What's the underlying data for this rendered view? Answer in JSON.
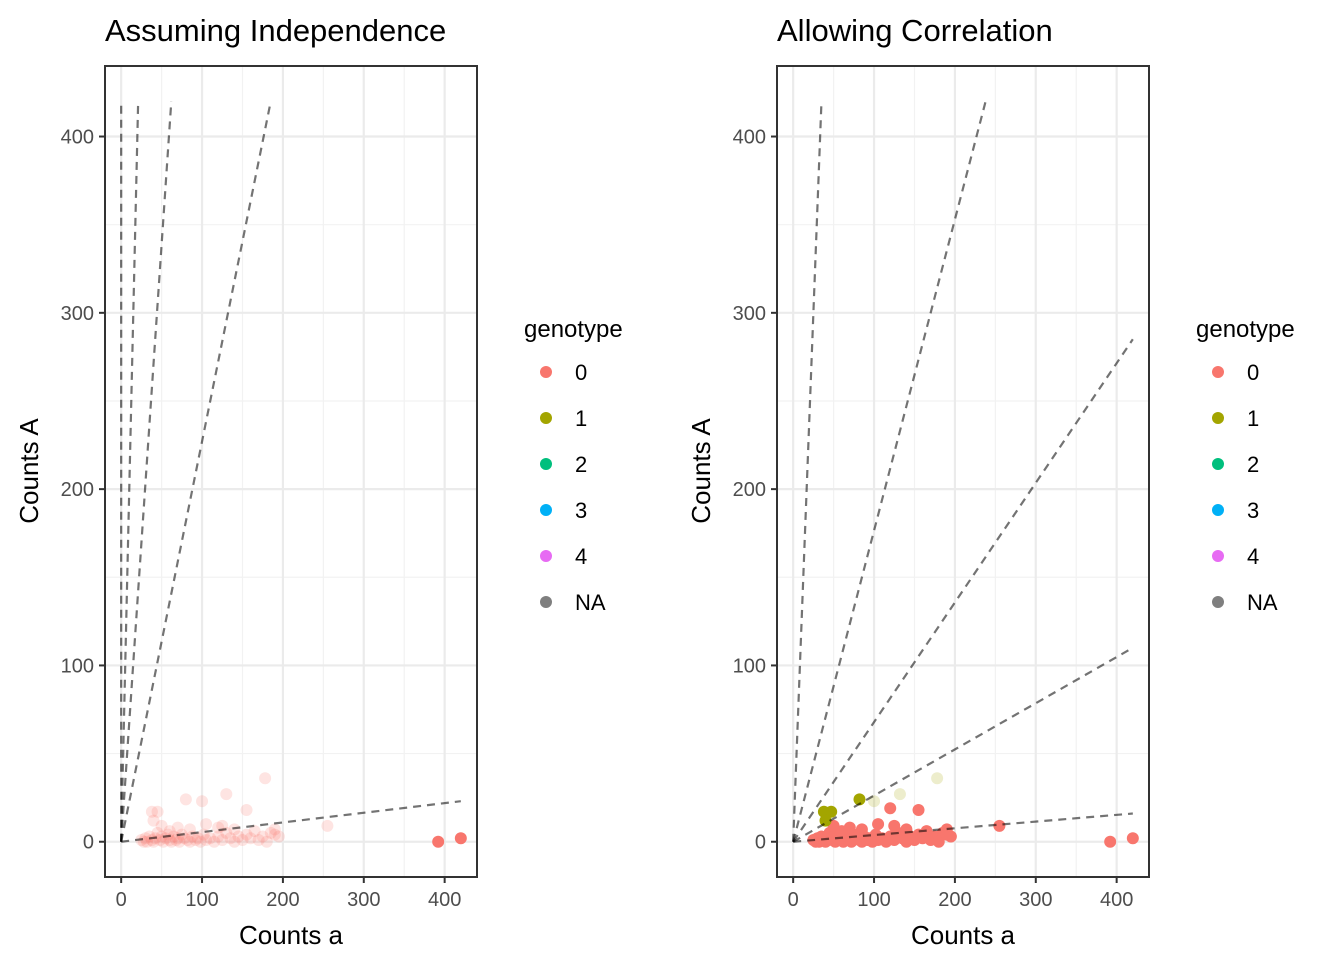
{
  "chart_data": [
    {
      "type": "scatter",
      "title": "Assuming Independence",
      "xlabel": "Counts a",
      "ylabel": "Counts A",
      "xlim": [
        -20,
        440
      ],
      "ylim": [
        -20,
        440
      ],
      "x_ticks": [
        0,
        100,
        200,
        300,
        400
      ],
      "y_ticks": [
        0,
        100,
        200,
        300,
        400
      ],
      "grid": true,
      "point_alpha": "faded",
      "legend": {
        "title": "genotype",
        "position": "right",
        "entries": [
          {
            "label": "0",
            "color": "#F8766D"
          },
          {
            "label": "1",
            "color": "#A3A500"
          },
          {
            "label": "2",
            "color": "#00BF7D"
          },
          {
            "label": "3",
            "color": "#00B0F6"
          },
          {
            "label": "4",
            "color": "#E76BF3"
          },
          {
            "label": "NA",
            "color": "#7F7F7F"
          }
        ]
      },
      "reference_lines": [
        {
          "x": [
            0,
            420
          ],
          "y": [
            0,
            23
          ]
        },
        {
          "x": [
            0,
            185
          ],
          "y": [
            0,
            420
          ]
        },
        {
          "x": [
            0,
            62
          ],
          "y": [
            0,
            420
          ]
        },
        {
          "x": [
            0,
            21
          ],
          "y": [
            0,
            420
          ]
        },
        {
          "x": [
            0,
            0
          ],
          "y": [
            0,
            420
          ]
        }
      ],
      "series": [
        {
          "genotype": "0",
          "points": [
            [
              25,
              1
            ],
            [
              28,
              0
            ],
            [
              30,
              2
            ],
            [
              32,
              0
            ],
            [
              35,
              3
            ],
            [
              38,
              1
            ],
            [
              40,
              0
            ],
            [
              42,
              2
            ],
            [
              45,
              5
            ],
            [
              48,
              1
            ],
            [
              50,
              3
            ],
            [
              52,
              0
            ],
            [
              55,
              2
            ],
            [
              58,
              4
            ],
            [
              60,
              1
            ],
            [
              62,
              0
            ],
            [
              65,
              3
            ],
            [
              68,
              1
            ],
            [
              70,
              2
            ],
            [
              72,
              0
            ],
            [
              75,
              4
            ],
            [
              78,
              2
            ],
            [
              82,
              1
            ],
            [
              85,
              0
            ],
            [
              88,
              3
            ],
            [
              92,
              1
            ],
            [
              95,
              2
            ],
            [
              98,
              0
            ],
            [
              102,
              4
            ],
            [
              105,
              1
            ],
            [
              110,
              2
            ],
            [
              115,
              0
            ],
            [
              120,
              3
            ],
            [
              125,
              1
            ],
            [
              130,
              5
            ],
            [
              135,
              2
            ],
            [
              140,
              0
            ],
            [
              145,
              3
            ],
            [
              150,
              1
            ],
            [
              155,
              4
            ],
            [
              160,
              2
            ],
            [
              165,
              6
            ],
            [
              170,
              1
            ],
            [
              175,
              3
            ],
            [
              180,
              0
            ],
            [
              185,
              5
            ],
            [
              190,
              4
            ],
            [
              195,
              3
            ],
            [
              38,
              17
            ],
            [
              45,
              17
            ],
            [
              40,
              12
            ],
            [
              80,
              24
            ],
            [
              100,
              23
            ],
            [
              130,
              27
            ],
            [
              155,
              18
            ],
            [
              178,
              36
            ],
            [
              105,
              10
            ],
            [
              120,
              8
            ],
            [
              70,
              8
            ],
            [
              85,
              7
            ],
            [
              60,
              6
            ],
            [
              50,
              9
            ],
            [
              140,
              7
            ],
            [
              125,
              9
            ],
            [
              190,
              7
            ],
            [
              255,
              9
            ],
            [
              392,
              0
            ],
            [
              420,
              2
            ]
          ]
        }
      ]
    },
    {
      "type": "scatter",
      "title": "Allowing Correlation",
      "xlabel": "Counts a",
      "ylabel": "Counts A",
      "xlim": [
        -20,
        440
      ],
      "ylim": [
        -20,
        440
      ],
      "x_ticks": [
        0,
        100,
        200,
        300,
        400
      ],
      "y_ticks": [
        0,
        100,
        200,
        300,
        400
      ],
      "grid": true,
      "point_alpha": "solid",
      "legend": {
        "title": "genotype",
        "position": "right",
        "entries": [
          {
            "label": "0",
            "color": "#F8766D"
          },
          {
            "label": "1",
            "color": "#A3A500"
          },
          {
            "label": "2",
            "color": "#00BF7D"
          },
          {
            "label": "3",
            "color": "#00B0F6"
          },
          {
            "label": "4",
            "color": "#E76BF3"
          },
          {
            "label": "NA",
            "color": "#7F7F7F"
          }
        ]
      },
      "reference_lines": [
        {
          "x": [
            0,
            420
          ],
          "y": [
            0,
            16
          ]
        },
        {
          "x": [
            0,
            420
          ],
          "y": [
            0,
            110
          ]
        },
        {
          "x": [
            0,
            420
          ],
          "y": [
            0,
            285
          ]
        },
        {
          "x": [
            0,
            238
          ],
          "y": [
            0,
            420
          ]
        },
        {
          "x": [
            0,
            35
          ],
          "y": [
            0,
            420
          ]
        }
      ],
      "series": [
        {
          "genotype": "0",
          "points": [
            [
              25,
              1
            ],
            [
              28,
              0
            ],
            [
              30,
              2
            ],
            [
              32,
              0
            ],
            [
              35,
              3
            ],
            [
              38,
              1
            ],
            [
              40,
              0
            ],
            [
              42,
              2
            ],
            [
              45,
              5
            ],
            [
              48,
              1
            ],
            [
              50,
              3
            ],
            [
              52,
              0
            ],
            [
              55,
              2
            ],
            [
              58,
              4
            ],
            [
              60,
              1
            ],
            [
              62,
              0
            ],
            [
              65,
              3
            ],
            [
              68,
              1
            ],
            [
              70,
              2
            ],
            [
              72,
              0
            ],
            [
              75,
              4
            ],
            [
              78,
              2
            ],
            [
              82,
              1
            ],
            [
              85,
              0
            ],
            [
              88,
              3
            ],
            [
              92,
              1
            ],
            [
              95,
              2
            ],
            [
              98,
              0
            ],
            [
              102,
              4
            ],
            [
              105,
              1
            ],
            [
              110,
              2
            ],
            [
              115,
              0
            ],
            [
              120,
              3
            ],
            [
              125,
              1
            ],
            [
              130,
              5
            ],
            [
              135,
              2
            ],
            [
              140,
              0
            ],
            [
              145,
              3
            ],
            [
              150,
              1
            ],
            [
              155,
              4
            ],
            [
              160,
              2
            ],
            [
              165,
              6
            ],
            [
              170,
              1
            ],
            [
              175,
              3
            ],
            [
              180,
              0
            ],
            [
              185,
              5
            ],
            [
              190,
              4
            ],
            [
              195,
              3
            ],
            [
              105,
              10
            ],
            [
              120,
              19
            ],
            [
              155,
              18
            ],
            [
              70,
              8
            ],
            [
              85,
              7
            ],
            [
              60,
              6
            ],
            [
              50,
              9
            ],
            [
              140,
              7
            ],
            [
              125,
              9
            ],
            [
              190,
              7
            ],
            [
              255,
              9
            ],
            [
              392,
              0
            ],
            [
              420,
              2
            ]
          ]
        },
        {
          "genotype": "1",
          "points": [
            [
              38,
              17
            ],
            [
              47,
              17
            ],
            [
              82,
              24
            ],
            [
              40,
              12
            ]
          ]
        },
        {
          "genotype": "faded",
          "points": [
            [
              100,
              23
            ],
            [
              132,
              27
            ],
            [
              178,
              36
            ]
          ]
        }
      ]
    }
  ]
}
